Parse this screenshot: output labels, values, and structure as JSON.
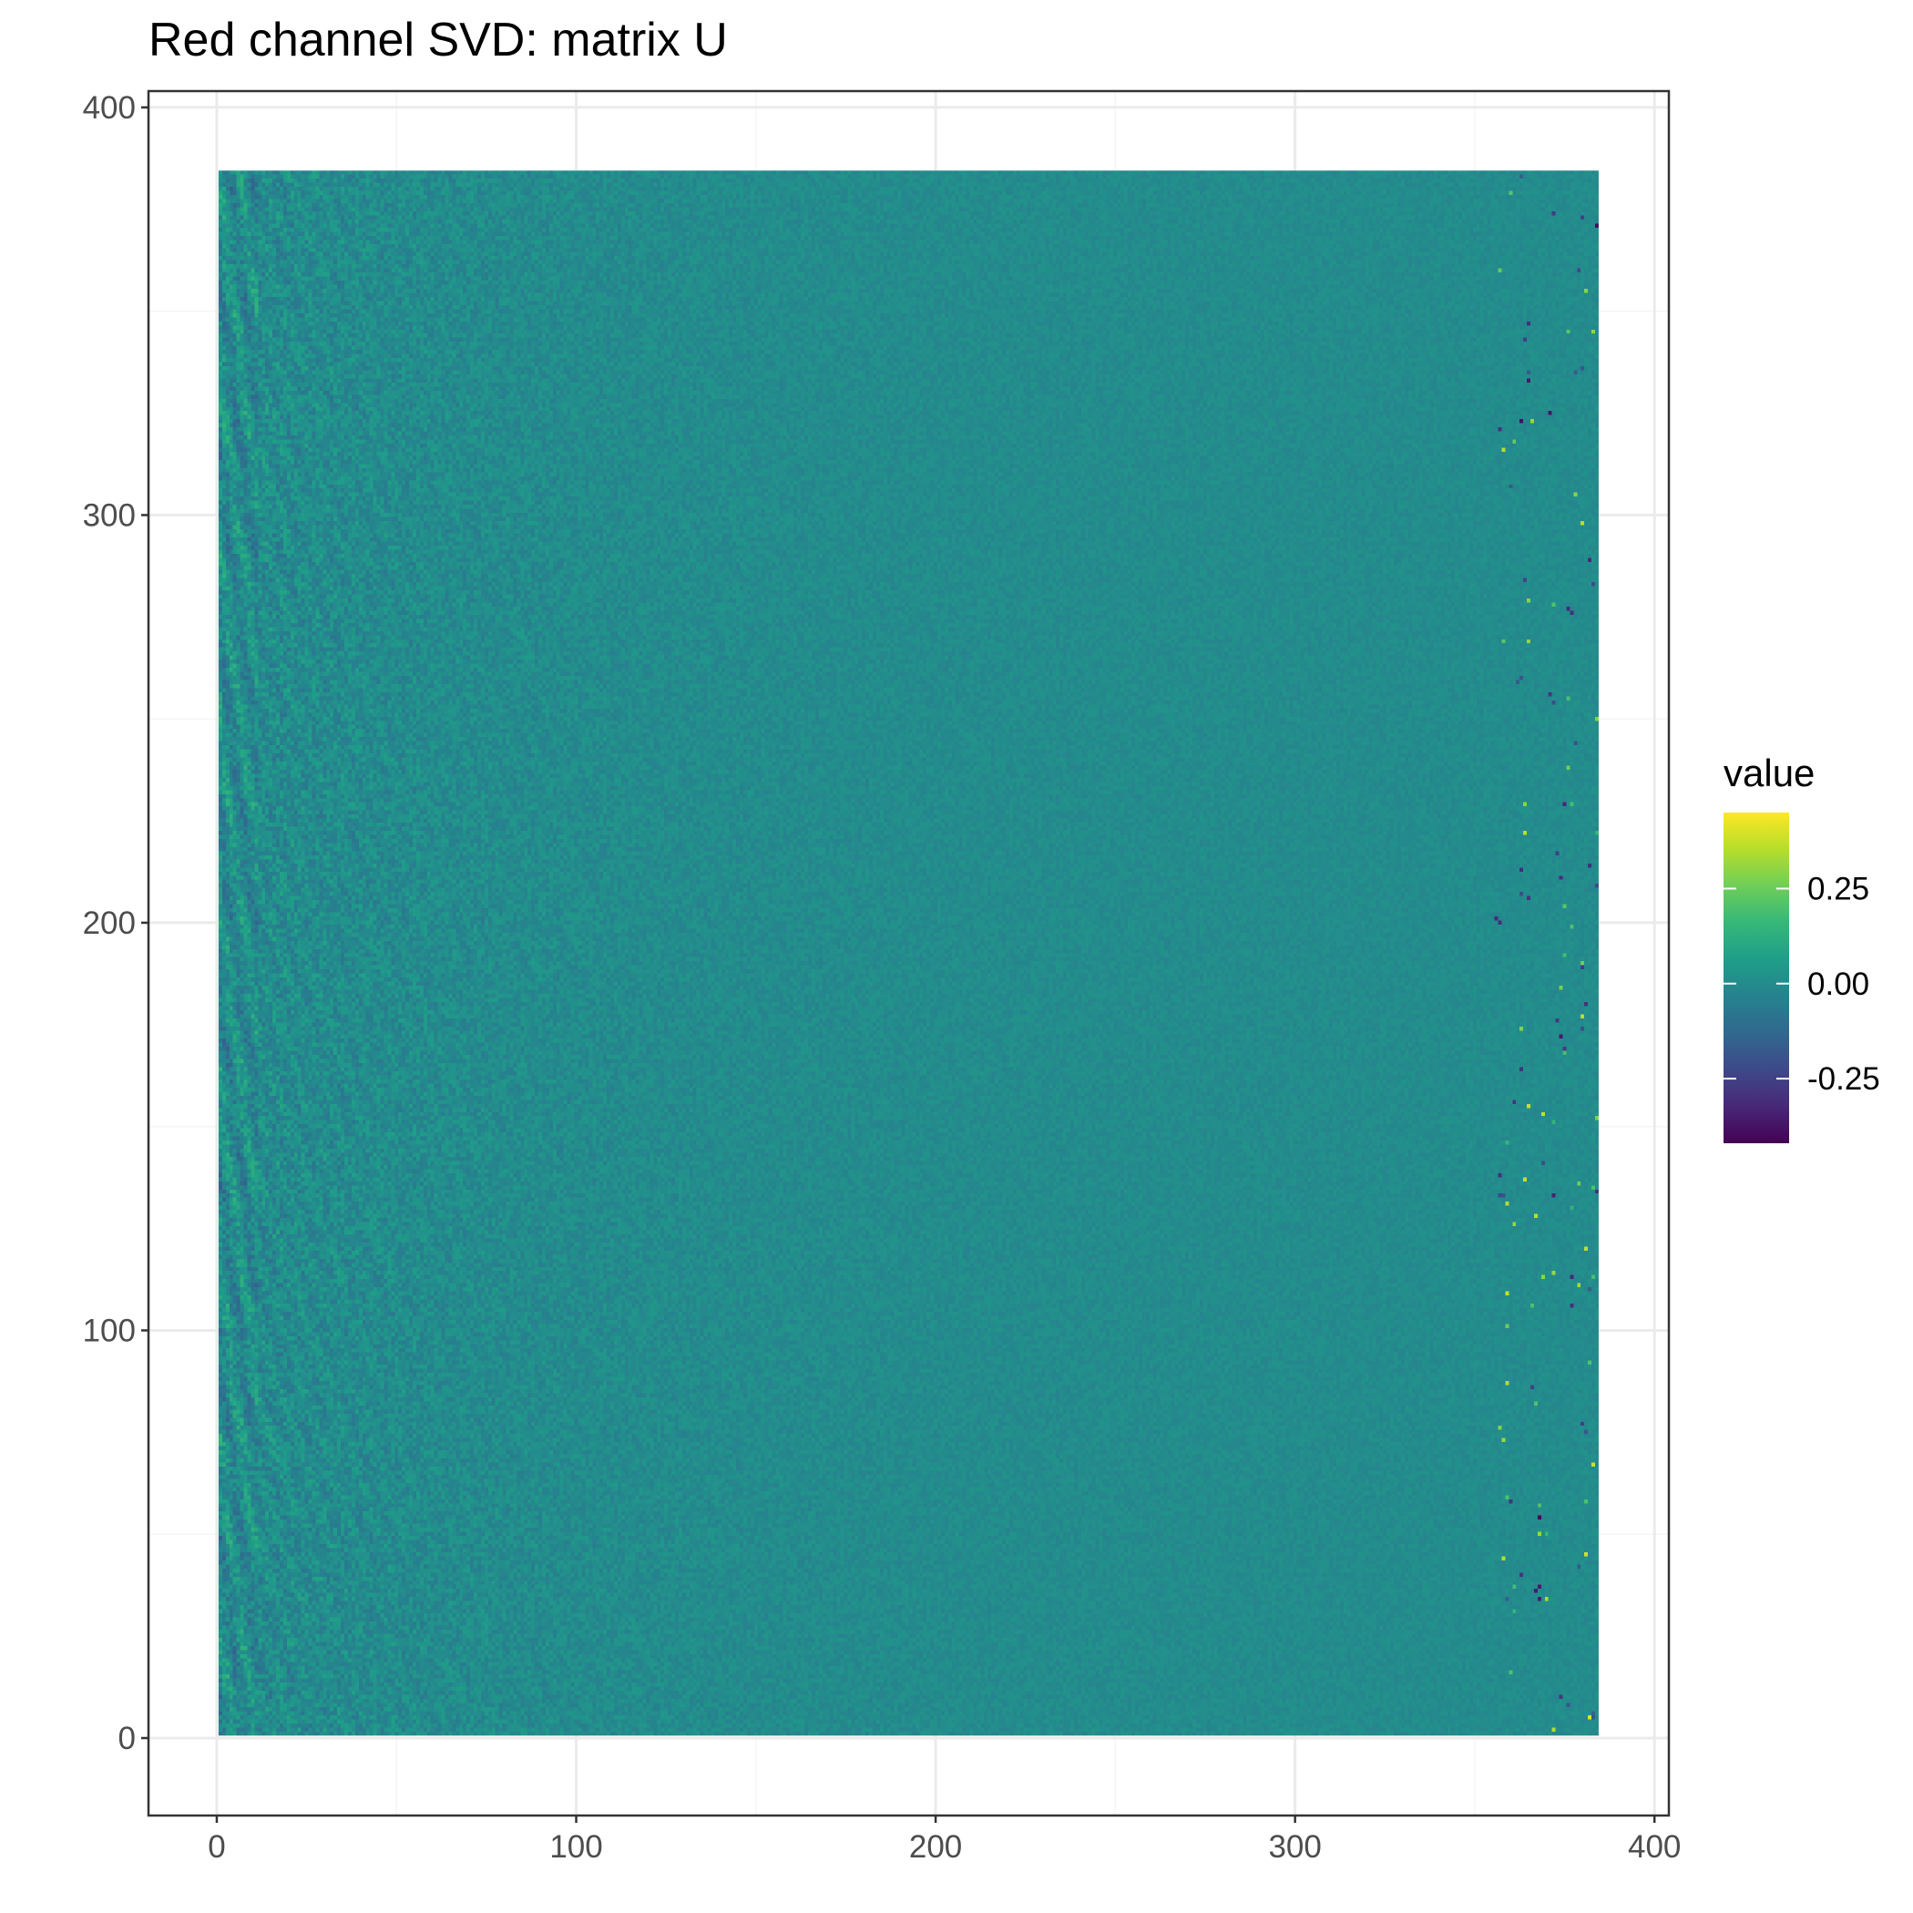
{
  "chart_data": {
    "type": "heatmap",
    "title": "Red channel SVD: matrix U",
    "xlabel": "",
    "ylabel": "",
    "xlim": [
      -19,
      404
    ],
    "ylim": [
      -19,
      404
    ],
    "x_ticks": [
      0,
      100,
      200,
      300,
      400
    ],
    "y_ticks": [
      0,
      100,
      200,
      300,
      400
    ],
    "x_tick_labels": [
      "0",
      "100",
      "200",
      "300",
      "400"
    ],
    "y_tick_labels": [
      "0",
      "100",
      "200",
      "300",
      "400"
    ],
    "matrix": {
      "columns": 384,
      "rows": 384,
      "x_range": [
        1,
        384
      ],
      "y_range": [
        1,
        384
      ],
      "description_of_values": "left singular vectors; most values near 0, larger magnitude oscillations in low-index columns and sporadic extremes near the last columns"
    },
    "legend": {
      "title": "value",
      "position": "right",
      "range": [
        -0.42,
        0.45
      ],
      "ticks": [
        -0.25,
        0,
        0.25
      ],
      "tick_labels": [
        "-0.25",
        "0.00",
        "0.25"
      ],
      "colormap": "viridis"
    },
    "grid": true,
    "colors": {
      "panel_border": "#333333",
      "grid_major": "#ebebeb",
      "grid_minor": "#f5f5f5",
      "tick_text": "#4d4d4d",
      "viridis": [
        "#440154",
        "#482878",
        "#3e4989",
        "#31688e",
        "#26828e",
        "#1f9e89",
        "#35b779",
        "#6ece58",
        "#b5de2b",
        "#fde725"
      ]
    }
  }
}
